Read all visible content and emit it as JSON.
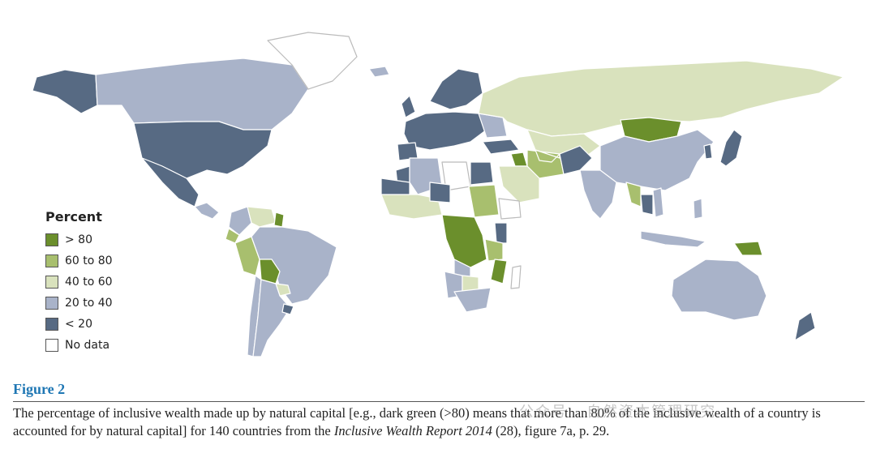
{
  "colors": {
    "gt80": "#6b8f2c",
    "60to80": "#a8bf6e",
    "40to60": "#d9e2bd",
    "20to40": "#a9b3c9",
    "lt20": "#576a83",
    "nodata": "#ffffff",
    "border": "#ffffff",
    "accent": "#1f77b4"
  },
  "legend": {
    "title": "Percent",
    "items": [
      {
        "label": "> 80",
        "color_key": "gt80"
      },
      {
        "label": "60 to 80",
        "color_key": "60to80"
      },
      {
        "label": "40 to 60",
        "color_key": "40to60"
      },
      {
        "label": "20 to 40",
        "color_key": "20to40"
      },
      {
        "label": "< 20",
        "color_key": "lt20"
      },
      {
        "label": "No data",
        "color_key": "nodata"
      }
    ]
  },
  "figure": {
    "title": "Figure 2",
    "caption_part1": "The percentage of inclusive wealth made up by natural capital [e.g., dark green (>80) means that more than 80% of the inclusive wealth of a country is accounted for by natural capital] for 140 countries from the ",
    "caption_italic": "Inclusive Wealth Report 2014",
    "caption_part2": " (28), figure 7a, p. 29."
  },
  "watermark": "公众号 · 自然资本管理研究"
}
